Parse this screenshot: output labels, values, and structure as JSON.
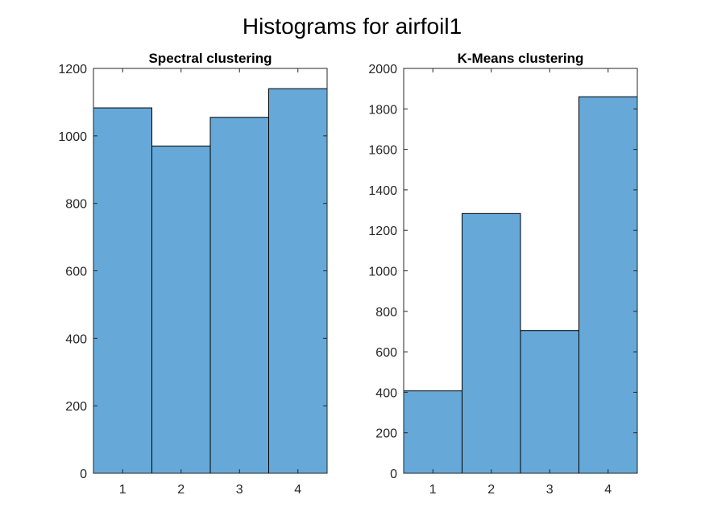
{
  "figure_title": "Histograms for airfoil1",
  "colors": {
    "bar_fill": "#66a9d8",
    "bar_edge": "#000000",
    "axes": "#262626"
  },
  "chart_data": [
    {
      "type": "bar",
      "title": "Spectral clustering",
      "categories": [
        "1",
        "2",
        "3",
        "4"
      ],
      "values": [
        1083,
        970,
        1055,
        1140
      ],
      "xlabel": "",
      "ylabel": "",
      "xlim": [
        0.5,
        4.5
      ],
      "ylim": [
        0,
        1200
      ],
      "yticks": [
        0,
        200,
        400,
        600,
        800,
        1000,
        1200
      ],
      "ytick_labels": [
        "0",
        "200",
        "400",
        "600",
        "800",
        "1000",
        "1200"
      ],
      "grid": false
    },
    {
      "type": "bar",
      "title": "K-Means clustering",
      "categories": [
        "1",
        "2",
        "3",
        "4"
      ],
      "values": [
        407,
        1283,
        705,
        1860
      ],
      "xlabel": "",
      "ylabel": "",
      "xlim": [
        0.5,
        4.5
      ],
      "ylim": [
        0,
        2000
      ],
      "yticks": [
        0,
        200,
        400,
        600,
        800,
        1000,
        1200,
        1400,
        1600,
        1800,
        2000
      ],
      "ytick_labels": [
        "0",
        "200",
        "400",
        "600",
        "800",
        "1000",
        "1200",
        "1400",
        "1600",
        "1800",
        "2000"
      ],
      "grid": false
    }
  ]
}
